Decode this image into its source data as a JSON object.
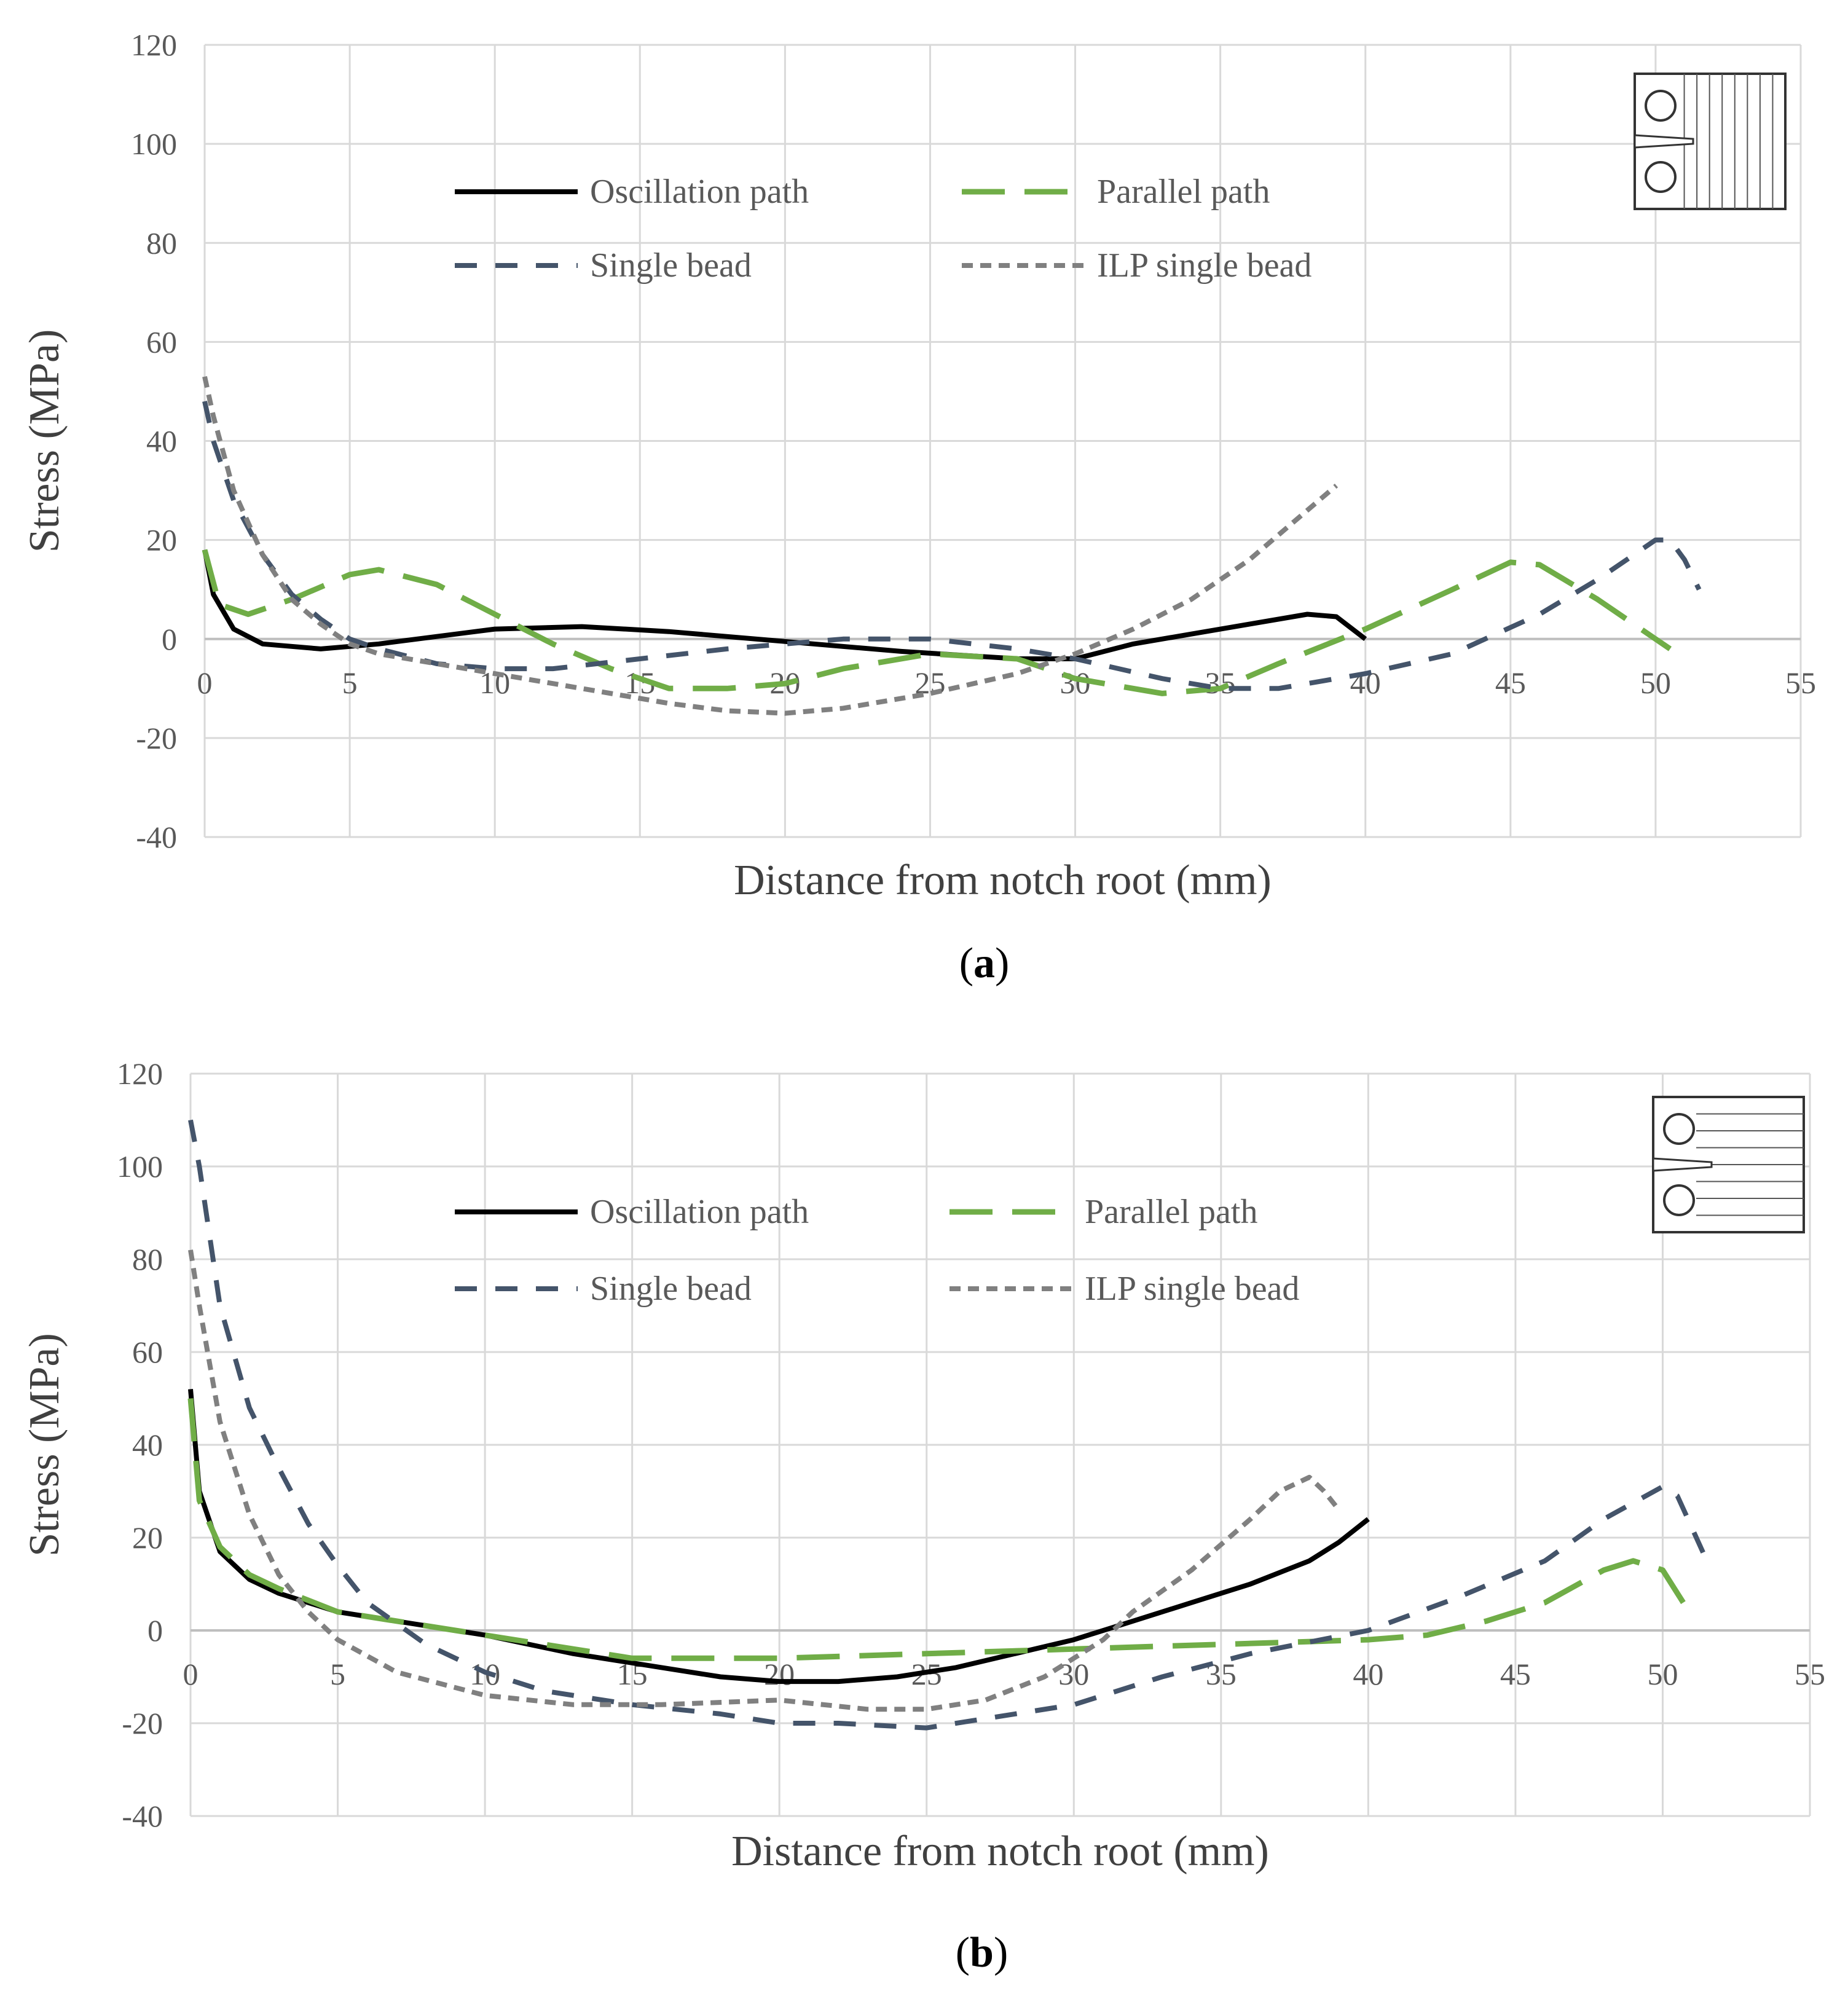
{
  "chart_data": [
    {
      "type": "line",
      "panel_label": "a",
      "xlabel": "Distance from notch root (mm)",
      "ylabel": "Stress (MPa)",
      "xlim": [
        0,
        55
      ],
      "ylim": [
        -40,
        120
      ],
      "xticks": [
        0,
        5,
        10,
        15,
        20,
        25,
        30,
        35,
        40,
        45,
        50,
        55
      ],
      "yticks": [
        -40,
        -20,
        0,
        20,
        40,
        60,
        80,
        100,
        120
      ],
      "grid": true,
      "legend_position": "upper-center",
      "inset_orientation": "vertical-lines",
      "series": [
        {
          "name": "Oscillation path",
          "color": "#000000",
          "dash": "solid",
          "points": [
            [
              0,
              18
            ],
            [
              0.3,
              9
            ],
            [
              1,
              2
            ],
            [
              2,
              -1
            ],
            [
              4,
              -2
            ],
            [
              6,
              -1
            ],
            [
              8,
              0.5
            ],
            [
              10,
              2
            ],
            [
              13,
              2.5
            ],
            [
              16,
              1.5
            ],
            [
              20,
              -0.5
            ],
            [
              24,
              -2.5
            ],
            [
              28,
              -4
            ],
            [
              30,
              -4
            ],
            [
              32,
              -1
            ],
            [
              34,
              1
            ],
            [
              36,
              3
            ],
            [
              38,
              5
            ],
            [
              39,
              4.5
            ],
            [
              40,
              0
            ]
          ]
        },
        {
          "name": "Parallel path",
          "color": "#70AD47",
          "dash": "longdash",
          "points": [
            [
              0,
              18
            ],
            [
              0.5,
              7
            ],
            [
              1.5,
              5
            ],
            [
              3,
              8
            ],
            [
              5,
              13
            ],
            [
              6,
              14
            ],
            [
              8,
              11
            ],
            [
              10,
              5
            ],
            [
              12,
              -1
            ],
            [
              14,
              -6
            ],
            [
              16,
              -10
            ],
            [
              18,
              -10
            ],
            [
              20,
              -9
            ],
            [
              22,
              -6
            ],
            [
              25,
              -3
            ],
            [
              28,
              -4
            ],
            [
              30,
              -8
            ],
            [
              33,
              -11
            ],
            [
              35,
              -10
            ],
            [
              37,
              -5
            ],
            [
              40,
              2
            ],
            [
              43,
              10
            ],
            [
              45,
              15.5
            ],
            [
              46,
              15
            ],
            [
              48,
              8
            ],
            [
              50,
              0
            ],
            [
              50.5,
              -2
            ]
          ]
        },
        {
          "name": "Single bead",
          "color": "#44546A",
          "dash": "dash",
          "points": [
            [
              0,
              48
            ],
            [
              0.3,
              40
            ],
            [
              1,
              28
            ],
            [
              2,
              17
            ],
            [
              3,
              9
            ],
            [
              4,
              4
            ],
            [
              5,
              0
            ],
            [
              6,
              -2
            ],
            [
              8,
              -5
            ],
            [
              10,
              -6
            ],
            [
              12,
              -6
            ],
            [
              15,
              -4
            ],
            [
              18,
              -2
            ],
            [
              20,
              -1
            ],
            [
              22,
              0
            ],
            [
              25,
              0
            ],
            [
              28,
              -2
            ],
            [
              30,
              -4
            ],
            [
              33,
              -8
            ],
            [
              35,
              -10
            ],
            [
              37,
              -10
            ],
            [
              40,
              -7
            ],
            [
              43,
              -3
            ],
            [
              46,
              5
            ],
            [
              48,
              12
            ],
            [
              50,
              20
            ],
            [
              50.5,
              20
            ],
            [
              51,
              16
            ],
            [
              51.5,
              10
            ]
          ]
        },
        {
          "name": "ILP single bead",
          "color": "#808080",
          "dash": "shortdash",
          "points": [
            [
              0,
              53
            ],
            [
              0.3,
              45
            ],
            [
              1,
              30
            ],
            [
              2,
              17
            ],
            [
              3,
              8
            ],
            [
              4,
              3
            ],
            [
              5,
              -1
            ],
            [
              6,
              -3
            ],
            [
              8,
              -5
            ],
            [
              10,
              -7
            ],
            [
              13,
              -10
            ],
            [
              16,
              -13
            ],
            [
              18,
              -14.5
            ],
            [
              20,
              -15
            ],
            [
              22,
              -14
            ],
            [
              25,
              -11
            ],
            [
              28,
              -7
            ],
            [
              30,
              -3
            ],
            [
              32,
              2
            ],
            [
              34,
              8
            ],
            [
              36,
              16
            ],
            [
              38,
              26
            ],
            [
              39,
              31
            ]
          ]
        }
      ]
    },
    {
      "type": "line",
      "panel_label": "b",
      "xlabel": "Distance from notch root (mm)",
      "ylabel": "Stress (MPa)",
      "xlim": [
        0,
        55
      ],
      "ylim": [
        -40,
        120
      ],
      "xticks": [
        0,
        5,
        10,
        15,
        20,
        25,
        30,
        35,
        40,
        45,
        50,
        55
      ],
      "yticks": [
        -40,
        -20,
        0,
        20,
        40,
        60,
        80,
        100,
        120
      ],
      "grid": true,
      "legend_position": "upper-center",
      "inset_orientation": "horizontal-lines",
      "series": [
        {
          "name": "Oscillation path",
          "color": "#000000",
          "dash": "solid",
          "points": [
            [
              0,
              52
            ],
            [
              0.3,
              30
            ],
            [
              1,
              17
            ],
            [
              2,
              11
            ],
            [
              3,
              8
            ],
            [
              5,
              4
            ],
            [
              8,
              1
            ],
            [
              10,
              -1
            ],
            [
              13,
              -5
            ],
            [
              16,
              -8
            ],
            [
              18,
              -10
            ],
            [
              20,
              -11
            ],
            [
              22,
              -11
            ],
            [
              24,
              -10
            ],
            [
              26,
              -8
            ],
            [
              28,
              -5
            ],
            [
              30,
              -2
            ],
            [
              32,
              2
            ],
            [
              34,
              6
            ],
            [
              36,
              10
            ],
            [
              38,
              15
            ],
            [
              39,
              19
            ],
            [
              40,
              24
            ]
          ]
        },
        {
          "name": "Parallel path",
          "color": "#70AD47",
          "dash": "longdash",
          "points": [
            [
              0,
              50
            ],
            [
              0.3,
              28
            ],
            [
              1,
              18
            ],
            [
              2,
              12
            ],
            [
              3,
              9
            ],
            [
              5,
              4
            ],
            [
              8,
              1
            ],
            [
              10,
              -1
            ],
            [
              13,
              -4
            ],
            [
              15,
              -6
            ],
            [
              18,
              -6
            ],
            [
              20,
              -6
            ],
            [
              25,
              -5
            ],
            [
              30,
              -4
            ],
            [
              35,
              -3
            ],
            [
              40,
              -2
            ],
            [
              42,
              -1
            ],
            [
              44,
              2
            ],
            [
              46,
              6
            ],
            [
              48,
              13
            ],
            [
              49,
              15
            ],
            [
              50,
              13
            ],
            [
              50.5,
              8
            ],
            [
              50.8,
              5
            ]
          ]
        },
        {
          "name": "Single bead",
          "color": "#44546A",
          "dash": "dash",
          "points": [
            [
              0,
              110
            ],
            [
              0.3,
              100
            ],
            [
              1,
              70
            ],
            [
              2,
              48
            ],
            [
              3,
              35
            ],
            [
              4,
              23
            ],
            [
              5,
              14
            ],
            [
              6,
              6
            ],
            [
              8,
              -3
            ],
            [
              10,
              -9
            ],
            [
              12,
              -13
            ],
            [
              15,
              -16
            ],
            [
              18,
              -18
            ],
            [
              20,
              -20
            ],
            [
              22,
              -20
            ],
            [
              25,
              -21
            ],
            [
              28,
              -18
            ],
            [
              30,
              -16
            ],
            [
              33,
              -10
            ],
            [
              36,
              -5
            ],
            [
              40,
              0
            ],
            [
              43,
              7
            ],
            [
              46,
              15
            ],
            [
              48,
              24
            ],
            [
              50,
              31
            ],
            [
              50.5,
              29
            ],
            [
              51,
              22
            ],
            [
              51.5,
              15
            ]
          ]
        },
        {
          "name": "ILP single bead",
          "color": "#808080",
          "dash": "shortdash",
          "points": [
            [
              0,
              82
            ],
            [
              0.3,
              70
            ],
            [
              1,
              45
            ],
            [
              2,
              25
            ],
            [
              3,
              12
            ],
            [
              4,
              4
            ],
            [
              5,
              -2
            ],
            [
              7,
              -9
            ],
            [
              10,
              -14
            ],
            [
              13,
              -16
            ],
            [
              16,
              -16
            ],
            [
              20,
              -15
            ],
            [
              23,
              -17
            ],
            [
              25,
              -17
            ],
            [
              27,
              -15
            ],
            [
              29,
              -10
            ],
            [
              30,
              -6
            ],
            [
              31,
              -2
            ],
            [
              32,
              4
            ],
            [
              34,
              13
            ],
            [
              36,
              24
            ],
            [
              37,
              30
            ],
            [
              38,
              33
            ],
            [
              38.5,
              30
            ],
            [
              39,
              26
            ]
          ]
        }
      ]
    }
  ]
}
